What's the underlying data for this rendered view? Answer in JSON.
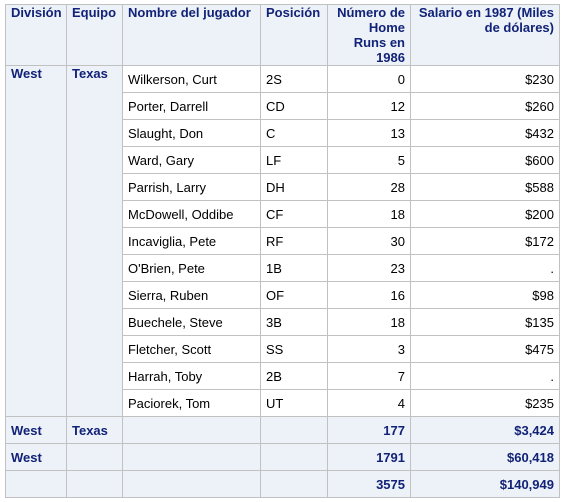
{
  "headers": {
    "division": "División",
    "team": "Equipo",
    "player": "Nombre del jugador",
    "position": "Posición",
    "homeruns": "Número de Home Runs en 1986",
    "salary": "Salario en 1987 (Miles de dólares)"
  },
  "group": {
    "division": "West",
    "team": "Texas"
  },
  "rows": [
    {
      "player": "Wilkerson, Curt",
      "position": "2S",
      "homeruns": "0",
      "salary": "$230"
    },
    {
      "player": "Porter, Darrell",
      "position": "CD",
      "homeruns": "12",
      "salary": "$260"
    },
    {
      "player": "Slaught, Don",
      "position": "C",
      "homeruns": "13",
      "salary": "$432"
    },
    {
      "player": "Ward, Gary",
      "position": "LF",
      "homeruns": "5",
      "salary": "$600"
    },
    {
      "player": "Parrish, Larry",
      "position": "DH",
      "homeruns": "28",
      "salary": "$588"
    },
    {
      "player": "McDowell, Oddibe",
      "position": "CF",
      "homeruns": "18",
      "salary": "$200"
    },
    {
      "player": "Incaviglia, Pete",
      "position": "RF",
      "homeruns": "30",
      "salary": "$172"
    },
    {
      "player": "O'Brien, Pete",
      "position": "1B",
      "homeruns": "23",
      "salary": "."
    },
    {
      "player": "Sierra, Ruben",
      "position": "OF",
      "homeruns": "16",
      "salary": "$98"
    },
    {
      "player": "Buechele, Steve",
      "position": "3B",
      "homeruns": "18",
      "salary": "$135"
    },
    {
      "player": "Fletcher, Scott",
      "position": "SS",
      "homeruns": "3",
      "salary": "$475"
    },
    {
      "player": "Harrah, Toby",
      "position": "2B",
      "homeruns": "7",
      "salary": "."
    },
    {
      "player": "Paciorek, Tom",
      "position": "UT",
      "homeruns": "4",
      "salary": "$235"
    }
  ],
  "summaries": [
    {
      "division": "West",
      "team": "Texas",
      "homeruns": "177",
      "salary": "$3,424"
    },
    {
      "division": "West",
      "team": "",
      "homeruns": "1791",
      "salary": "$60,418"
    },
    {
      "division": "",
      "team": "",
      "homeruns": "3575",
      "salary": "$140,949"
    }
  ]
}
